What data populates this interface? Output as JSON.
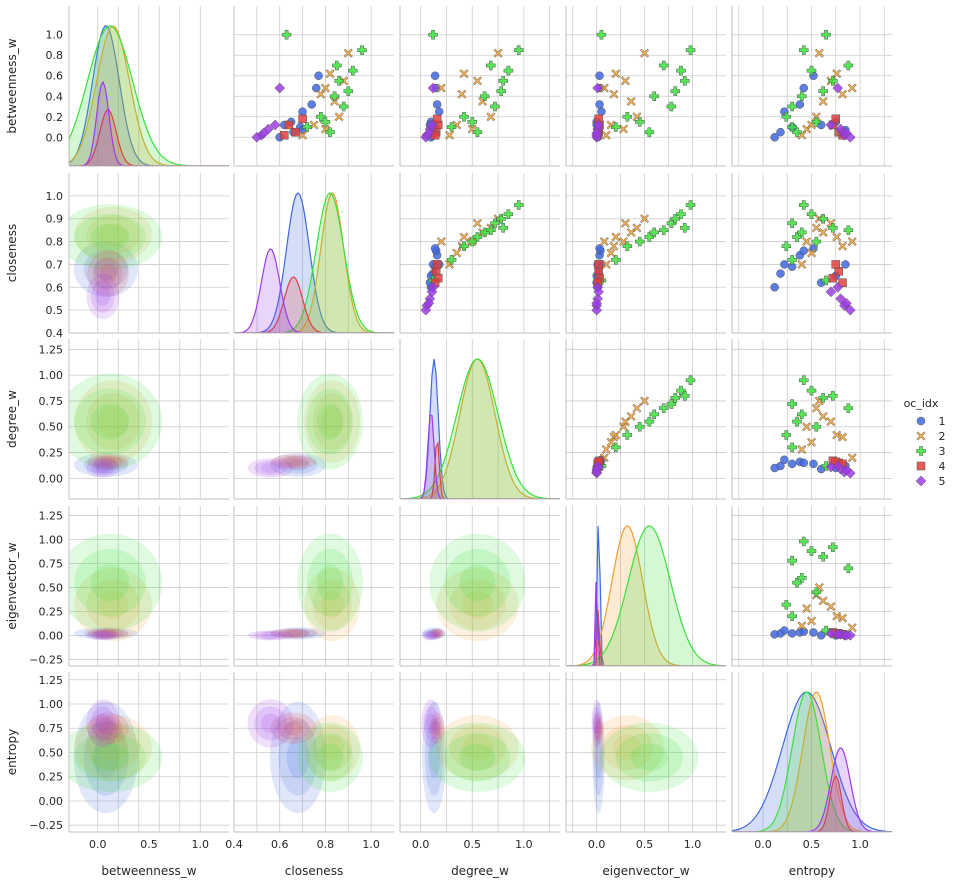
{
  "chart_data": {
    "type": "scatter",
    "variables": [
      "betweenness_w",
      "closeness",
      "degree_w",
      "eigenvector_w",
      "entropy"
    ],
    "axis_labels": {
      "betweenness_w": "betweenness_w",
      "closeness": "closeness",
      "degree_w": "degree_w",
      "eigenvector_w": "eigenvector_w",
      "entropy": "entropy"
    },
    "ranges": {
      "betweenness_w": [
        -0.28,
        1.28
      ],
      "closeness": [
        0.4,
        1.1
      ],
      "degree_w": [
        -0.2,
        1.35
      ],
      "eigenvector_w": [
        -0.32,
        1.35
      ],
      "entropy": [
        -0.32,
        1.33
      ]
    },
    "ticks": {
      "betweenness_w": [
        0.0,
        0.2,
        0.4,
        0.6,
        0.8,
        1.0
      ],
      "closeness": [
        0.4,
        0.5,
        0.6,
        0.7,
        0.8,
        0.9,
        1.0
      ],
      "degree_w": [
        0.0,
        0.25,
        0.5,
        0.75,
        1.0,
        1.25
      ],
      "eigenvector_w": [
        -0.25,
        0.0,
        0.25,
        0.5,
        0.75,
        1.0,
        1.25
      ],
      "entropy": [
        -0.25,
        0.0,
        0.25,
        0.5,
        0.75,
        1.0,
        1.25
      ]
    },
    "xtick_labels": {
      "betweenness_w": [
        "0.0",
        "0.5",
        "1.0"
      ],
      "closeness": [
        "0.4",
        "0.6",
        "0.8",
        "1.0"
      ],
      "degree_w": [
        "0.0",
        "0.5",
        "1.0"
      ],
      "eigenvector_w": [
        "0.0",
        "0.5",
        "1.0"
      ],
      "entropy": [
        "0.0",
        "0.5",
        "1.0"
      ]
    },
    "ytick_labels": {
      "betweenness_w": [
        "0.0",
        "0.2",
        "0.4",
        "0.6",
        "0.8",
        "1.0"
      ],
      "closeness": [
        "0.4",
        "0.5",
        "0.6",
        "0.7",
        "0.8",
        "0.9",
        "1.0"
      ],
      "degree_w": [
        "0.00",
        "0.25",
        "0.50",
        "0.75",
        "1.00",
        "1.25"
      ],
      "eigenvector_w": [
        "−0.25",
        "0.00",
        "0.25",
        "0.50",
        "0.75",
        "1.00",
        "1.25"
      ],
      "entropy": [
        "−0.25",
        "0.00",
        "0.25",
        "0.50",
        "0.75",
        "1.00",
        "1.25"
      ]
    },
    "grid": true,
    "diagonal": "kde",
    "lower": "kde",
    "upper": "scatter",
    "legend": {
      "title": "oc_idx",
      "placement": "right"
    },
    "groups": [
      {
        "label": "1",
        "color": "#4169e1",
        "marker": "circle",
        "center": {
          "betweenness_w": 0.08,
          "closeness": 0.68,
          "degree_w": 0.13,
          "eigenvector_w": 0.02,
          "entropy": 0.45
        },
        "spread": {
          "betweenness_w": 0.13,
          "closeness": 0.05,
          "degree_w": 0.04,
          "eigenvector_w": 0.015,
          "entropy": 0.25
        },
        "points": [
          {
            "betweenness_w": 0.05,
            "closeness": 0.66,
            "degree_w": 0.12,
            "eigenvector_w": 0.02,
            "entropy": 0.18
          },
          {
            "betweenness_w": 0.1,
            "closeness": 0.69,
            "degree_w": 0.14,
            "eigenvector_w": 0.02,
            "entropy": 0.3
          },
          {
            "betweenness_w": 0.0,
            "closeness": 0.6,
            "degree_w": 0.1,
            "eigenvector_w": 0.01,
            "entropy": 0.12
          },
          {
            "betweenness_w": 0.32,
            "closeness": 0.74,
            "degree_w": 0.16,
            "eigenvector_w": 0.03,
            "entropy": 0.38
          },
          {
            "betweenness_w": 0.48,
            "closeness": 0.76,
            "degree_w": 0.15,
            "eigenvector_w": 0.04,
            "entropy": 0.42
          },
          {
            "betweenness_w": 0.6,
            "closeness": 0.77,
            "degree_w": 0.14,
            "eigenvector_w": 0.03,
            "entropy": 0.52
          },
          {
            "betweenness_w": 0.25,
            "closeness": 0.7,
            "degree_w": 0.18,
            "eigenvector_w": 0.05,
            "entropy": 0.22
          },
          {
            "betweenness_w": 0.15,
            "closeness": 0.65,
            "degree_w": 0.1,
            "eigenvector_w": 0.0,
            "entropy": 0.75
          },
          {
            "betweenness_w": 0.07,
            "closeness": 0.7,
            "degree_w": 0.12,
            "eigenvector_w": 0.01,
            "entropy": 0.85
          },
          {
            "betweenness_w": 0.12,
            "closeness": 0.62,
            "degree_w": 0.09,
            "eigenvector_w": 0.0,
            "entropy": 0.6
          }
        ]
      },
      {
        "label": "2",
        "color": "#f0a030",
        "marker": "x",
        "center": {
          "betweenness_w": 0.15,
          "closeness": 0.83,
          "degree_w": 0.55,
          "eigenvector_w": 0.32,
          "entropy": 0.55
        },
        "spread": {
          "betweenness_w": 0.16,
          "closeness": 0.05,
          "degree_w": 0.17,
          "eigenvector_w": 0.16,
          "entropy": 0.14
        },
        "points": [
          {
            "betweenness_w": 0.08,
            "closeness": 0.8,
            "degree_w": 0.5,
            "eigenvector_w": 0.28,
            "entropy": 0.45
          },
          {
            "betweenness_w": 0.2,
            "closeness": 0.86,
            "degree_w": 0.68,
            "eigenvector_w": 0.42,
            "entropy": 0.55
          },
          {
            "betweenness_w": 0.35,
            "closeness": 0.84,
            "degree_w": 0.6,
            "eigenvector_w": 0.36,
            "entropy": 0.62
          },
          {
            "betweenness_w": 0.55,
            "closeness": 0.88,
            "degree_w": 0.55,
            "eigenvector_w": 0.3,
            "entropy": 0.7
          },
          {
            "betweenness_w": 0.82,
            "closeness": 0.9,
            "degree_w": 0.75,
            "eigenvector_w": 0.5,
            "entropy": 0.58
          },
          {
            "betweenness_w": 0.42,
            "closeness": 0.78,
            "degree_w": 0.4,
            "eigenvector_w": 0.18,
            "entropy": 0.82
          },
          {
            "betweenness_w": 0.62,
            "closeness": 0.82,
            "degree_w": 0.42,
            "eigenvector_w": 0.2,
            "entropy": 0.76
          },
          {
            "betweenness_w": 0.12,
            "closeness": 0.75,
            "degree_w": 0.35,
            "eigenvector_w": 0.15,
            "entropy": 0.5
          },
          {
            "betweenness_w": 0.02,
            "closeness": 0.7,
            "degree_w": 0.28,
            "eigenvector_w": 0.1,
            "entropy": 0.4
          },
          {
            "betweenness_w": 0.48,
            "closeness": 0.8,
            "degree_w": 0.2,
            "eigenvector_w": 0.08,
            "entropy": 0.92
          }
        ]
      },
      {
        "label": "3",
        "color": "#3be03b",
        "marker": "plus",
        "center": {
          "betweenness_w": 0.12,
          "closeness": 0.82,
          "degree_w": 0.55,
          "eigenvector_w": 0.55,
          "entropy": 0.45
        },
        "spread": {
          "betweenness_w": 0.22,
          "closeness": 0.06,
          "degree_w": 0.2,
          "eigenvector_w": 0.22,
          "entropy": 0.15
        },
        "points": [
          {
            "betweenness_w": 0.05,
            "closeness": 0.82,
            "degree_w": 0.55,
            "eigenvector_w": 0.55,
            "entropy": 0.35
          },
          {
            "betweenness_w": 0.3,
            "closeness": 0.88,
            "degree_w": 0.72,
            "eigenvector_w": 0.78,
            "entropy": 0.3
          },
          {
            "betweenness_w": 0.65,
            "closeness": 0.92,
            "degree_w": 0.85,
            "eigenvector_w": 0.88,
            "entropy": 0.5
          },
          {
            "betweenness_w": 0.85,
            "closeness": 0.96,
            "degree_w": 0.95,
            "eigenvector_w": 0.98,
            "entropy": 0.42
          },
          {
            "betweenness_w": 1.0,
            "closeness": 0.63,
            "degree_w": 0.12,
            "eigenvector_w": 0.05,
            "entropy": 0.65
          },
          {
            "betweenness_w": 0.55,
            "closeness": 0.86,
            "degree_w": 0.8,
            "eigenvector_w": 0.92,
            "entropy": 0.72
          },
          {
            "betweenness_w": 0.2,
            "closeness": 0.78,
            "degree_w": 0.42,
            "eigenvector_w": 0.32,
            "entropy": 0.24
          },
          {
            "betweenness_w": 0.4,
            "closeness": 0.84,
            "degree_w": 0.62,
            "eigenvector_w": 0.6,
            "entropy": 0.4
          },
          {
            "betweenness_w": 0.7,
            "closeness": 0.85,
            "degree_w": 0.68,
            "eigenvector_w": 0.7,
            "entropy": 0.88
          },
          {
            "betweenness_w": 0.1,
            "closeness": 0.72,
            "degree_w": 0.3,
            "eigenvector_w": 0.2,
            "entropy": 0.3
          },
          {
            "betweenness_w": 0.45,
            "closeness": 0.9,
            "degree_w": 0.78,
            "eigenvector_w": 0.82,
            "entropy": 0.62
          },
          {
            "betweenness_w": 0.15,
            "closeness": 0.8,
            "degree_w": 0.5,
            "eigenvector_w": 0.45,
            "entropy": 0.55
          }
        ]
      },
      {
        "label": "4",
        "color": "#e04040",
        "marker": "square",
        "center": {
          "betweenness_w": 0.1,
          "closeness": 0.66,
          "degree_w": 0.16,
          "eigenvector_w": 0.02,
          "entropy": 0.75
        },
        "spread": {
          "betweenness_w": 0.08,
          "closeness": 0.04,
          "degree_w": 0.02,
          "eigenvector_w": 0.01,
          "entropy": 0.06
        },
        "points": [
          {
            "betweenness_w": 0.05,
            "closeness": 0.67,
            "degree_w": 0.15,
            "eigenvector_w": 0.02,
            "entropy": 0.78
          },
          {
            "betweenness_w": 0.12,
            "closeness": 0.64,
            "degree_w": 0.17,
            "eigenvector_w": 0.03,
            "entropy": 0.72
          },
          {
            "betweenness_w": 0.02,
            "closeness": 0.62,
            "degree_w": 0.14,
            "eigenvector_w": 0.01,
            "entropy": 0.82
          },
          {
            "betweenness_w": 0.18,
            "closeness": 0.7,
            "degree_w": 0.16,
            "eigenvector_w": 0.02,
            "entropy": 0.75
          }
        ]
      },
      {
        "label": "5",
        "color": "#9d3be8",
        "marker": "diamond",
        "center": {
          "betweenness_w": 0.05,
          "closeness": 0.56,
          "degree_w": 0.1,
          "eigenvector_w": 0.0,
          "entropy": 0.8
        },
        "spread": {
          "betweenness_w": 0.06,
          "closeness": 0.04,
          "degree_w": 0.03,
          "eigenvector_w": 0.01,
          "entropy": 0.1
        },
        "points": [
          {
            "betweenness_w": 0.02,
            "closeness": 0.52,
            "degree_w": 0.06,
            "eigenvector_w": 0.0,
            "entropy": 0.84
          },
          {
            "betweenness_w": 0.08,
            "closeness": 0.55,
            "degree_w": 0.09,
            "eigenvector_w": 0.01,
            "entropy": 0.8
          },
          {
            "betweenness_w": 0.0,
            "closeness": 0.5,
            "degree_w": 0.05,
            "eigenvector_w": 0.0,
            "entropy": 0.9
          },
          {
            "betweenness_w": 0.48,
            "closeness": 0.6,
            "degree_w": 0.12,
            "eigenvector_w": 0.01,
            "entropy": 0.77
          },
          {
            "betweenness_w": 0.12,
            "closeness": 0.58,
            "degree_w": 0.11,
            "eigenvector_w": 0.02,
            "entropy": 0.7
          },
          {
            "betweenness_w": 0.04,
            "closeness": 0.53,
            "degree_w": 0.08,
            "eigenvector_w": 0.0,
            "entropy": 0.86
          }
        ]
      }
    ]
  }
}
